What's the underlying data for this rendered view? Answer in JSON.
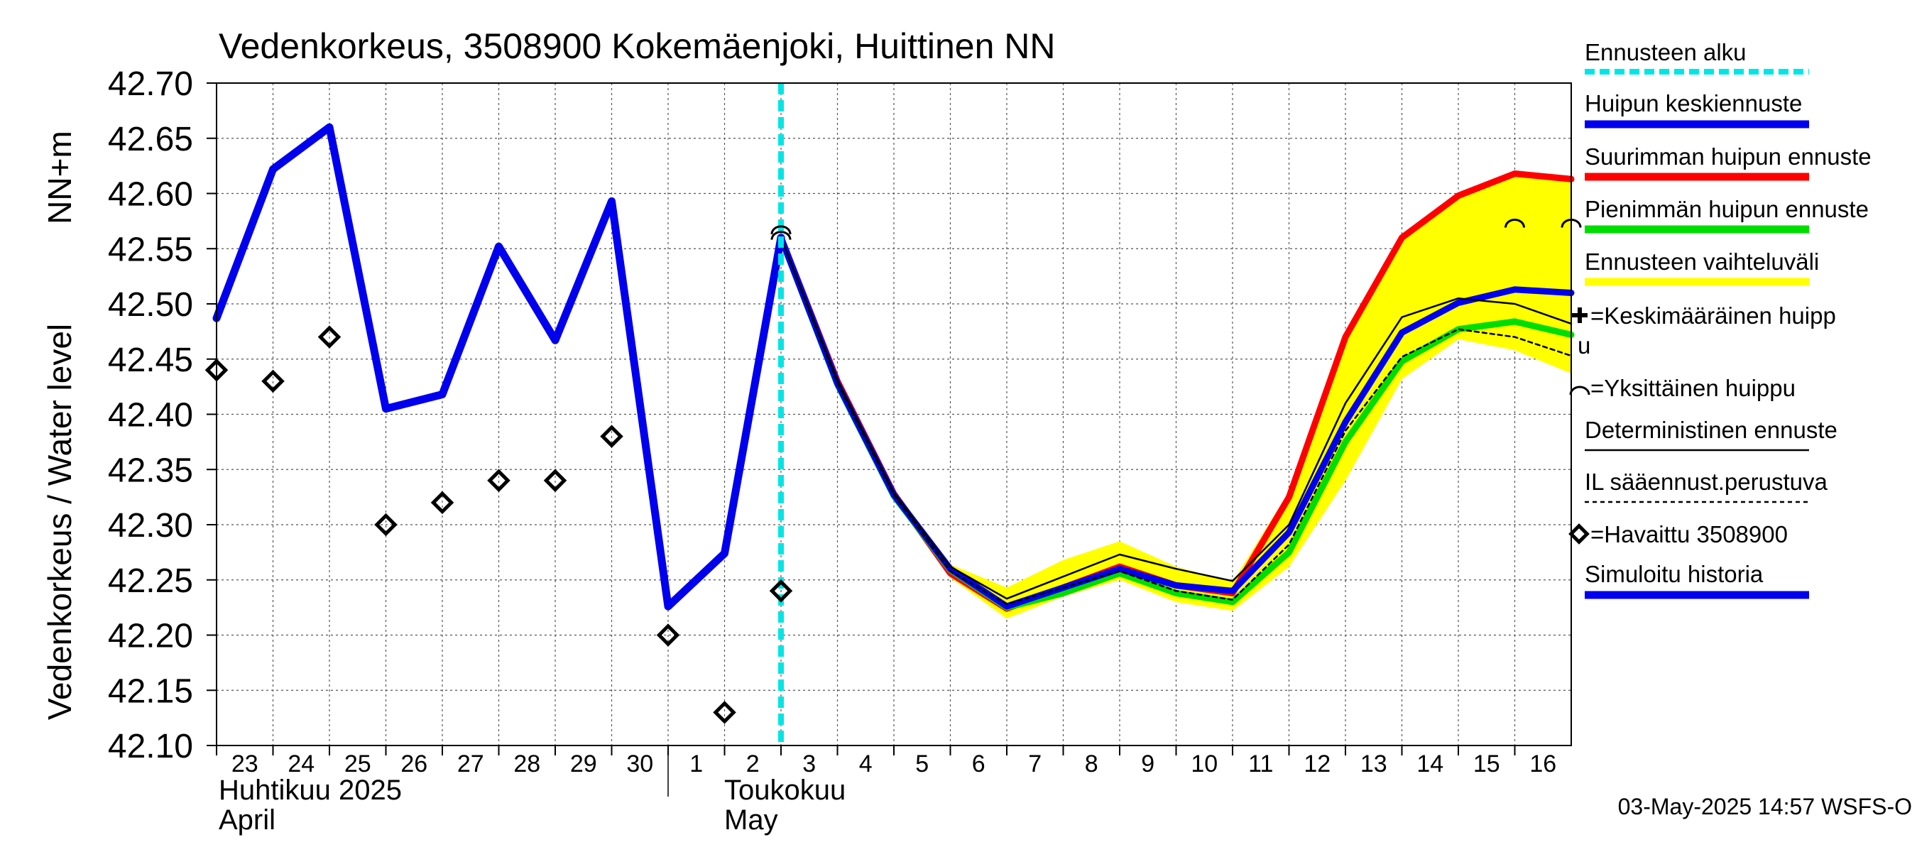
{
  "chart_data": {
    "type": "line",
    "title": "Vedenkorkeus, 3508900 Kokemäenjoki, Huittinen NN",
    "ylabel_main": "Vedenkorkeus / Water level",
    "ylabel_unit": "NN+m",
    "ylim": [
      42.1,
      42.7
    ],
    "y_ticks": [
      "42.10",
      "42.15",
      "42.20",
      "42.25",
      "42.30",
      "42.35",
      "42.40",
      "42.45",
      "42.50",
      "42.55",
      "42.60",
      "42.65",
      "42.70"
    ],
    "x_range": [
      0,
      24
    ],
    "day_labels": [
      "23",
      "24",
      "25",
      "26",
      "27",
      "28",
      "29",
      "30",
      "1",
      "2",
      "3",
      "4",
      "5",
      "6",
      "7",
      "8",
      "9",
      "10",
      "11",
      "12",
      "13",
      "14",
      "15",
      "16"
    ],
    "month_labels": {
      "april_fi": "Huhtikuu  2025",
      "april_en": "April",
      "may_fi": "Toukokuu",
      "may_en": "May"
    },
    "forecast_start_x": 10.0,
    "series": {
      "simulated_history": {
        "name": "Simuloitu historia",
        "color": "#0000ee",
        "x": [
          0,
          1,
          2,
          3,
          4,
          5,
          6,
          7,
          8,
          9,
          10.0
        ],
        "y": [
          42.487,
          42.622,
          42.66,
          42.405,
          42.418,
          42.552,
          42.467,
          42.593,
          42.226,
          42.274,
          42.56
        ]
      },
      "observed": {
        "name": "=Havaittu 3508900",
        "x": [
          0,
          1,
          2,
          3,
          4,
          5,
          6,
          7,
          8,
          9,
          10
        ],
        "y": [
          42.44,
          42.43,
          42.47,
          42.3,
          42.32,
          42.34,
          42.34,
          42.38,
          42.2,
          42.13,
          42.24
        ]
      },
      "range_band": {
        "name": "Ennusteen vaihteluväli",
        "color": "#ffff00",
        "x": [
          10,
          11,
          12,
          13,
          14,
          15,
          16,
          17,
          18,
          19,
          20,
          21,
          22,
          23,
          24
        ],
        "upper": [
          42.56,
          42.432,
          42.33,
          42.264,
          42.243,
          42.268,
          42.285,
          42.262,
          42.248,
          42.33,
          42.472,
          42.562,
          42.6,
          42.62,
          42.615
        ],
        "lower": [
          42.56,
          42.424,
          42.322,
          42.252,
          42.215,
          42.235,
          42.25,
          42.23,
          42.222,
          42.262,
          42.34,
          42.432,
          42.468,
          42.458,
          42.437
        ]
      },
      "max_peak": {
        "name": "Suurimman huipun ennuste",
        "color": "#ff0000",
        "x": [
          10,
          11,
          12,
          13,
          14,
          15,
          16,
          17,
          18,
          19,
          20,
          21,
          22,
          23,
          24
        ],
        "y": [
          42.56,
          42.43,
          42.328,
          42.256,
          42.224,
          42.243,
          42.262,
          42.245,
          42.238,
          42.325,
          42.47,
          42.56,
          42.598,
          42.618,
          42.613
        ]
      },
      "min_peak": {
        "name": "Pienimmän huipun ennuste",
        "color": "#00dd00",
        "x": [
          10,
          11,
          12,
          13,
          14,
          15,
          16,
          17,
          18,
          19,
          20,
          21,
          22,
          23,
          24
        ],
        "y": [
          42.56,
          42.427,
          42.326,
          42.259,
          42.225,
          42.238,
          42.256,
          42.238,
          42.23,
          42.275,
          42.375,
          42.448,
          42.477,
          42.484,
          42.472
        ]
      },
      "mean_peak": {
        "name": "Huipun keskiennuste",
        "color": "#0000ee",
        "x": [
          10,
          11,
          12,
          13,
          14,
          15,
          16,
          17,
          18,
          19,
          20,
          21,
          22,
          23,
          24
        ],
        "y": [
          42.56,
          42.428,
          42.327,
          42.26,
          42.226,
          42.243,
          42.26,
          42.245,
          42.24,
          42.293,
          42.393,
          42.474,
          42.501,
          42.513,
          42.51
        ]
      },
      "deterministic": {
        "name": "Deterministinen ennuste",
        "color": "#000000",
        "x": [
          10,
          11,
          12,
          13,
          14,
          15,
          16,
          17,
          18,
          19,
          20,
          21,
          22,
          23,
          24
        ],
        "y": [
          42.56,
          42.431,
          42.329,
          42.262,
          42.233,
          42.253,
          42.273,
          42.26,
          42.249,
          42.3,
          42.41,
          42.488,
          42.505,
          42.5,
          42.482
        ]
      },
      "il_forecast": {
        "name": "IL sääennust.perustuva",
        "color": "#000000",
        "x": [
          10,
          11,
          12,
          13,
          14,
          15,
          16,
          17,
          18,
          19,
          20,
          21,
          22,
          23,
          24
        ],
        "y": [
          42.56,
          42.428,
          42.327,
          42.258,
          42.228,
          42.243,
          42.258,
          42.24,
          42.232,
          42.282,
          42.385,
          42.452,
          42.477,
          42.47,
          42.453
        ]
      }
    },
    "single_peaks": {
      "name": "=Yksittäinen huippu",
      "x": [
        10,
        10,
        23,
        24
      ],
      "y": [
        42.562,
        42.567,
        42.573,
        42.573
      ]
    },
    "legend": {
      "forecast_start": "Ennusteen alku",
      "mean_peak": "Huipun keskiennuste",
      "max_peak": "Suurimman huipun ennuste",
      "min_peak": "Pienimmän huipun ennuste",
      "range": "Ennusteen vaihteluväli",
      "avg_peak_line1": "=Keskimääräinen huipp",
      "avg_peak_line2": "u",
      "single_peak": "=Yksittäinen huippu",
      "deterministic": "Deterministinen ennuste",
      "il": "IL sääennust.perustuva",
      "observed": "=Havaittu 3508900",
      "simulated": "Simuloitu historia"
    },
    "colors": {
      "forecast_start": "#00e5e5",
      "band": "#ffff00",
      "red": "#ff0000",
      "green": "#00dd00",
      "blue": "#0000ee",
      "black": "#000000"
    },
    "timestamp": "03-May-2025 14:57 WSFS-O"
  }
}
